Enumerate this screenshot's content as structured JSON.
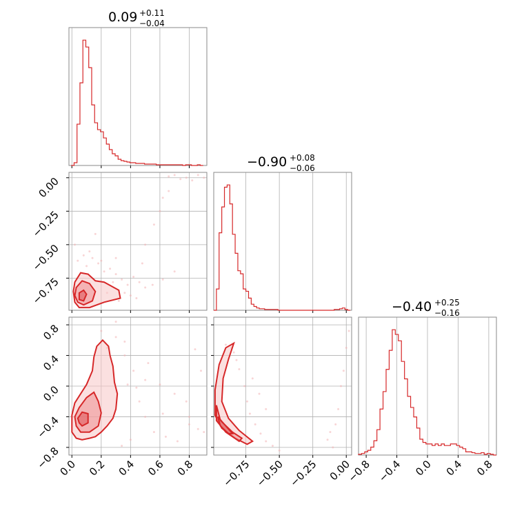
{
  "colors": {
    "series": "#d62728",
    "grid": "#b0b0b0",
    "frame": "#8a8a8a"
  },
  "chart_data": [
    {
      "type": "histogram",
      "panel": "p0_hist",
      "title_main": "0.09",
      "title_plus": "+0.11",
      "title_minus": "−0.04",
      "range": [
        -0.02,
        0.92
      ],
      "bins_x": [
        -0.005,
        0.015,
        0.035,
        0.055,
        0.075,
        0.095,
        0.115,
        0.135,
        0.155,
        0.175,
        0.195,
        0.215,
        0.235,
        0.255,
        0.275,
        0.295,
        0.315,
        0.335,
        0.355,
        0.375,
        0.395,
        0.415,
        0.435,
        0.455,
        0.475,
        0.495,
        0.515,
        0.535,
        0.555,
        0.575,
        0.595,
        0.615,
        0.635,
        0.655,
        0.675,
        0.695,
        0.715,
        0.735,
        0.755,
        0.775,
        0.795,
        0.815,
        0.835,
        0.855,
        0.875,
        0.895
      ],
      "counts": [
        0,
        4,
        60,
        120,
        182,
        172,
        142,
        88,
        62,
        52,
        49,
        40,
        31,
        23,
        17,
        14,
        9,
        7,
        6,
        5,
        4,
        4,
        3,
        3,
        3,
        2,
        2,
        2,
        2,
        1,
        1,
        1,
        1,
        1,
        1,
        1,
        1,
        1,
        0,
        1,
        1,
        0,
        0,
        1,
        0
      ]
    },
    {
      "type": "histogram",
      "panel": "p1_hist",
      "title_main": "−0.90",
      "title_plus": "+0.08",
      "title_minus": "−0.06",
      "range": [
        -0.99,
        0.04
      ],
      "bins_x": [
        -0.99,
        -0.97,
        -0.95,
        -0.93,
        -0.91,
        -0.89,
        -0.87,
        -0.85,
        -0.83,
        -0.81,
        -0.79,
        -0.77,
        -0.75,
        -0.73,
        -0.71,
        -0.69,
        -0.67,
        -0.65,
        -0.63,
        -0.61,
        -0.59,
        -0.57,
        -0.55,
        -0.53,
        -0.51,
        -0.49,
        -0.47,
        -0.45,
        -0.43,
        -0.41,
        -0.39,
        -0.37,
        -0.35,
        -0.33,
        -0.31,
        -0.29,
        -0.27,
        -0.25,
        -0.23,
        -0.21,
        -0.19,
        -0.17,
        -0.15,
        -0.13,
        -0.11,
        -0.09,
        -0.07,
        -0.05,
        -0.03,
        -0.01,
        0.01,
        0.03
      ],
      "counts": [
        0,
        28,
        102,
        136,
        162,
        165,
        140,
        100,
        75,
        52,
        48,
        28,
        25,
        16,
        8,
        5,
        3,
        2,
        2,
        1,
        1,
        1,
        1,
        1,
        0,
        0,
        0,
        0,
        0,
        0,
        0,
        0,
        0,
        0,
        0,
        0,
        0,
        0,
        0,
        0,
        0,
        0,
        0,
        0,
        0,
        1,
        1,
        2,
        3,
        1,
        0
      ]
    },
    {
      "type": "histogram",
      "panel": "p2_hist",
      "title_main": "−0.40",
      "title_plus": "+0.25",
      "title_minus": "−0.16",
      "range": [
        -0.9,
        0.9
      ],
      "bins_x": [
        -0.9,
        -0.86,
        -0.82,
        -0.78,
        -0.74,
        -0.7,
        -0.66,
        -0.62,
        -0.58,
        -0.54,
        -0.5,
        -0.46,
        -0.42,
        -0.38,
        -0.34,
        -0.3,
        -0.26,
        -0.22,
        -0.18,
        -0.14,
        -0.1,
        -0.06,
        -0.02,
        0.02,
        0.06,
        0.1,
        0.14,
        0.18,
        0.22,
        0.26,
        0.3,
        0.34,
        0.38,
        0.42,
        0.46,
        0.5,
        0.54,
        0.58,
        0.62,
        0.66,
        0.7,
        0.74,
        0.78,
        0.82,
        0.86,
        0.9
      ],
      "counts": [
        1,
        2,
        4,
        6,
        10,
        18,
        32,
        58,
        80,
        108,
        132,
        158,
        152,
        144,
        118,
        96,
        74,
        60,
        48,
        34,
        20,
        16,
        14,
        14,
        12,
        14,
        12,
        14,
        12,
        12,
        14,
        14,
        12,
        10,
        8,
        4,
        4,
        3,
        2,
        2,
        3,
        1,
        2,
        1,
        0
      ]
    },
    {
      "type": "scatter",
      "panel": "p10_2d",
      "x_name": "p0",
      "y_name": "p1",
      "xlim": [
        -0.02,
        0.92
      ],
      "ylim": [
        -0.99,
        0.04
      ],
      "contours": [
        {
          "level": 1,
          "points": [
            [
              0.02,
              -0.78
            ],
            [
              0.06,
              -0.71
            ],
            [
              0.11,
              -0.72
            ],
            [
              0.16,
              -0.77
            ],
            [
              0.22,
              -0.78
            ],
            [
              0.32,
              -0.84
            ],
            [
              0.33,
              -0.9
            ],
            [
              0.22,
              -0.93
            ],
            [
              0.12,
              -0.97
            ],
            [
              0.05,
              -0.97
            ],
            [
              0.02,
              -0.93
            ],
            [
              0.01,
              -0.85
            ]
          ]
        },
        {
          "level": 2,
          "points": [
            [
              0.03,
              -0.82
            ],
            [
              0.07,
              -0.77
            ],
            [
              0.12,
              -0.79
            ],
            [
              0.16,
              -0.85
            ],
            [
              0.14,
              -0.92
            ],
            [
              0.08,
              -0.95
            ],
            [
              0.04,
              -0.93
            ],
            [
              0.02,
              -0.88
            ]
          ]
        },
        {
          "level": 3,
          "points": [
            [
              0.05,
              -0.86
            ],
            [
              0.08,
              -0.84
            ],
            [
              0.1,
              -0.87
            ],
            [
              0.08,
              -0.92
            ],
            [
              0.05,
              -0.91
            ]
          ]
        }
      ],
      "points": [
        [
          0.02,
          -0.5
        ],
        [
          0.04,
          -0.62
        ],
        [
          0.08,
          -0.58
        ],
        [
          0.1,
          -0.66
        ],
        [
          0.14,
          -0.6
        ],
        [
          0.18,
          -0.64
        ],
        [
          0.22,
          -0.7
        ],
        [
          0.26,
          -0.68
        ],
        [
          0.3,
          -0.72
        ],
        [
          0.34,
          -0.76
        ],
        [
          0.38,
          -0.8
        ],
        [
          0.42,
          -0.74
        ],
        [
          0.46,
          -0.78
        ],
        [
          0.5,
          -0.82
        ],
        [
          0.55,
          -0.8
        ],
        [
          0.62,
          -0.76
        ],
        [
          0.7,
          -0.7
        ],
        [
          0.12,
          -0.55
        ],
        [
          0.2,
          -0.62
        ],
        [
          0.28,
          -0.78
        ],
        [
          0.36,
          -0.86
        ],
        [
          0.4,
          -0.88
        ],
        [
          0.16,
          -0.42
        ],
        [
          0.3,
          -0.6
        ],
        [
          0.5,
          -0.5
        ],
        [
          0.6,
          -0.25
        ],
        [
          0.66,
          -0.1
        ],
        [
          0.7,
          0.02
        ],
        [
          0.74,
          -0.01
        ],
        [
          0.78,
          0.0
        ],
        [
          0.82,
          -0.02
        ],
        [
          0.86,
          0.02
        ],
        [
          0.9,
          0.0
        ],
        [
          0.66,
          0.01
        ],
        [
          0.62,
          -0.15
        ],
        [
          0.56,
          -0.35
        ],
        [
          0.48,
          -0.64
        ],
        [
          0.24,
          -0.86
        ],
        [
          0.32,
          -0.92
        ],
        [
          0.44,
          -0.9
        ]
      ]
    },
    {
      "type": "scatter",
      "panel": "p20_2d",
      "x_name": "p0",
      "y_name": "p2",
      "xlim": [
        -0.02,
        0.92
      ],
      "ylim": [
        -0.9,
        0.9
      ],
      "contours": [
        {
          "level": 1,
          "points": [
            [
              0.0,
              -0.38
            ],
            [
              0.02,
              -0.22
            ],
            [
              0.06,
              -0.1
            ],
            [
              0.1,
              0.02
            ],
            [
              0.14,
              0.2
            ],
            [
              0.15,
              0.38
            ],
            [
              0.17,
              0.52
            ],
            [
              0.21,
              0.6
            ],
            [
              0.25,
              0.52
            ],
            [
              0.26,
              0.4
            ],
            [
              0.28,
              0.26
            ],
            [
              0.29,
              0.05
            ],
            [
              0.31,
              -0.1
            ],
            [
              0.3,
              -0.3
            ],
            [
              0.28,
              -0.42
            ],
            [
              0.24,
              -0.52
            ],
            [
              0.2,
              -0.6
            ],
            [
              0.16,
              -0.66
            ],
            [
              0.12,
              -0.68
            ],
            [
              0.07,
              -0.7
            ],
            [
              0.03,
              -0.68
            ],
            [
              0.0,
              -0.6
            ]
          ]
        },
        {
          "level": 2,
          "points": [
            [
              0.02,
              -0.4
            ],
            [
              0.05,
              -0.28
            ],
            [
              0.1,
              -0.15
            ],
            [
              0.15,
              -0.08
            ],
            [
              0.18,
              -0.2
            ],
            [
              0.2,
              -0.35
            ],
            [
              0.18,
              -0.52
            ],
            [
              0.12,
              -0.6
            ],
            [
              0.06,
              -0.6
            ],
            [
              0.03,
              -0.52
            ]
          ]
        },
        {
          "level": 3,
          "points": [
            [
              0.04,
              -0.42
            ],
            [
              0.07,
              -0.34
            ],
            [
              0.11,
              -0.36
            ],
            [
              0.11,
              -0.48
            ],
            [
              0.07,
              -0.52
            ],
            [
              0.05,
              -0.48
            ]
          ]
        }
      ],
      "points": [
        [
          0.2,
          0.72
        ],
        [
          0.3,
          0.64
        ],
        [
          0.36,
          0.4
        ],
        [
          0.42,
          0.2
        ],
        [
          0.5,
          0.08
        ],
        [
          0.6,
          0.02
        ],
        [
          0.7,
          -0.1
        ],
        [
          0.78,
          -0.2
        ],
        [
          0.84,
          0.48
        ],
        [
          0.88,
          0.2
        ],
        [
          0.46,
          -0.2
        ],
        [
          0.56,
          -0.6
        ],
        [
          0.64,
          -0.66
        ],
        [
          0.72,
          -0.72
        ],
        [
          0.8,
          -0.5
        ],
        [
          0.4,
          -0.7
        ],
        [
          0.34,
          -0.78
        ],
        [
          0.5,
          -0.4
        ],
        [
          0.62,
          -0.36
        ],
        [
          0.8,
          -0.4
        ],
        [
          0.86,
          -0.56
        ],
        [
          0.9,
          -0.6
        ],
        [
          0.38,
          0.02
        ],
        [
          0.44,
          -0.02
        ],
        [
          0.52,
          0.3
        ],
        [
          0.3,
          0.84
        ],
        [
          0.24,
          0.5
        ],
        [
          0.36,
          0.58
        ]
      ]
    },
    {
      "type": "scatter",
      "panel": "p21_2d",
      "x_name": "p1",
      "y_name": "p2",
      "xlim": [
        -0.99,
        0.04
      ],
      "ylim": [
        -0.9,
        0.9
      ],
      "contours": [
        {
          "level": 1,
          "points": [
            [
              -0.98,
              -0.05
            ],
            [
              -0.95,
              0.28
            ],
            [
              -0.9,
              0.5
            ],
            [
              -0.84,
              0.56
            ],
            [
              -0.88,
              0.35
            ],
            [
              -0.92,
              0.1
            ],
            [
              -0.93,
              -0.2
            ],
            [
              -0.88,
              -0.42
            ],
            [
              -0.8,
              -0.58
            ],
            [
              -0.7,
              -0.72
            ],
            [
              -0.74,
              -0.76
            ],
            [
              -0.83,
              -0.68
            ],
            [
              -0.93,
              -0.55
            ],
            [
              -0.98,
              -0.38
            ]
          ]
        },
        {
          "level": 2,
          "points": [
            [
              -0.97,
              -0.25
            ],
            [
              -0.94,
              -0.45
            ],
            [
              -0.85,
              -0.6
            ],
            [
              -0.78,
              -0.68
            ],
            [
              -0.8,
              -0.72
            ],
            [
              -0.9,
              -0.6
            ],
            [
              -0.97,
              -0.45
            ]
          ]
        },
        {
          "level": 3,
          "points": [
            [
              -0.96,
              -0.4
            ],
            [
              -0.9,
              -0.52
            ],
            [
              -0.85,
              -0.62
            ],
            [
              -0.88,
              -0.62
            ],
            [
              -0.94,
              -0.52
            ]
          ]
        }
      ],
      "points": [
        [
          -0.9,
          0.54
        ],
        [
          -0.86,
          0.5
        ],
        [
          -0.84,
          0.44
        ],
        [
          -0.82,
          0.34
        ],
        [
          -0.8,
          0.22
        ],
        [
          -0.76,
          0.0
        ],
        [
          -0.74,
          -0.2
        ],
        [
          -0.72,
          -0.36
        ],
        [
          -0.68,
          -0.5
        ],
        [
          -0.64,
          -0.62
        ],
        [
          -0.6,
          -0.72
        ],
        [
          -0.55,
          -0.78
        ],
        [
          -0.5,
          -0.84
        ],
        [
          -0.1,
          -0.8
        ],
        [
          -0.08,
          -0.5
        ],
        [
          -0.06,
          -0.3
        ],
        [
          -0.04,
          0.0
        ],
        [
          -0.02,
          0.2
        ],
        [
          0.0,
          0.5
        ],
        [
          0.02,
          0.72
        ],
        [
          -0.12,
          -0.6
        ],
        [
          -0.14,
          -0.7
        ],
        [
          -0.7,
          0.1
        ],
        [
          -0.65,
          -0.1
        ],
        [
          -0.6,
          -0.3
        ]
      ]
    }
  ],
  "axes": {
    "col0_ticks": [
      "0.0",
      "0.2",
      "0.4",
      "0.6",
      "0.8"
    ],
    "col0_values": [
      0.0,
      0.2,
      0.4,
      0.6,
      0.8
    ],
    "col1_ticks": [
      "−0.75",
      "−0.50",
      "−0.25",
      "0.00"
    ],
    "col1_values": [
      -0.75,
      -0.5,
      -0.25,
      0.0
    ],
    "col2_ticks": [
      "−0.8",
      "−0.4",
      "0.0",
      "0.4",
      "0.8"
    ],
    "col2_values": [
      -0.8,
      -0.4,
      0.0,
      0.4,
      0.8
    ],
    "row1_ticks": [
      "0.00",
      "−0.25",
      "−0.50",
      "−0.75"
    ],
    "row1_values": [
      0.0,
      -0.25,
      -0.5,
      -0.75
    ],
    "row2_ticks": [
      "0.8",
      "0.4",
      "0.0",
      "−0.4",
      "−0.8"
    ],
    "row2_values": [
      0.8,
      0.4,
      0.0,
      -0.4,
      -0.8
    ]
  }
}
